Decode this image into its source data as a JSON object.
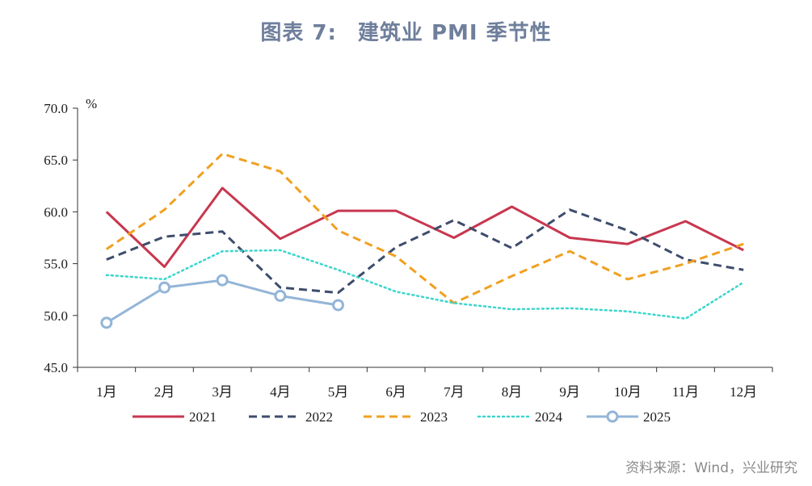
{
  "figure": {
    "label": "图表 7:",
    "title": "建筑业 PMI 季节性"
  },
  "source": "资料来源：Wind，兴业研究",
  "chart_data": {
    "type": "line",
    "yunit": "%",
    "ylim": [
      45.0,
      70.0
    ],
    "yticks": [
      "45.0",
      "50.0",
      "55.0",
      "60.0",
      "65.0",
      "70.0"
    ],
    "categories": [
      "1月",
      "2月",
      "3月",
      "4月",
      "5月",
      "6月",
      "7月",
      "8月",
      "9月",
      "10月",
      "11月",
      "12月"
    ],
    "grid": false,
    "legend_position": "bottom",
    "series": [
      {
        "name": "2021",
        "color": "#c8374f",
        "style": "solid",
        "marker": false,
        "values": [
          60.0,
          54.7,
          62.3,
          57.4,
          60.1,
          60.1,
          57.5,
          60.5,
          57.5,
          56.9,
          59.1,
          56.3
        ]
      },
      {
        "name": "2022",
        "color": "#3e4d6c",
        "style": "dashed",
        "marker": false,
        "values": [
          55.4,
          57.6,
          58.1,
          52.7,
          52.2,
          56.6,
          59.2,
          56.5,
          60.2,
          58.2,
          55.4,
          54.4
        ]
      },
      {
        "name": "2023",
        "color": "#f0a020",
        "style": "dashed",
        "marker": false,
        "values": [
          56.4,
          60.2,
          65.6,
          63.9,
          58.2,
          55.7,
          51.2,
          53.8,
          56.2,
          53.5,
          55.0,
          56.9
        ]
      },
      {
        "name": "2024",
        "color": "#3ad6cb",
        "style": "dotted",
        "marker": false,
        "values": [
          53.9,
          53.5,
          56.2,
          56.3,
          54.4,
          52.3,
          51.2,
          50.6,
          50.7,
          50.4,
          49.7,
          53.2
        ]
      },
      {
        "name": "2025",
        "color": "#93b5d8",
        "style": "solid",
        "marker": true,
        "values": [
          49.3,
          52.7,
          53.4,
          51.9,
          51.0,
          null,
          null,
          null,
          null,
          null,
          null,
          null
        ]
      }
    ]
  }
}
